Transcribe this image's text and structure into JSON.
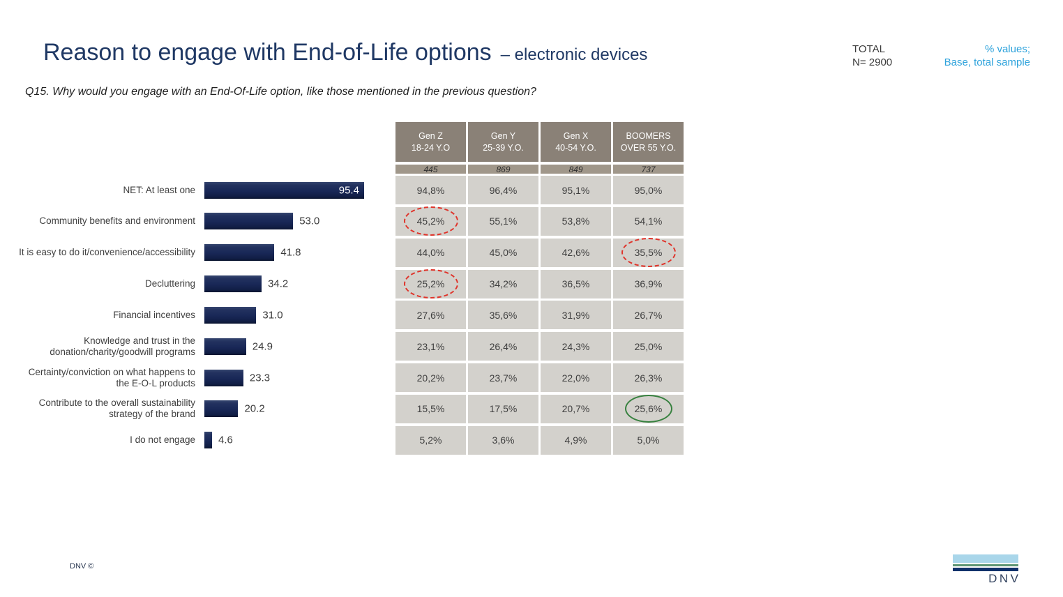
{
  "slide": {
    "title": "Reason to engage with End-of-Life options",
    "subtitle": "– electronic devices",
    "question": "Q15. Why would you engage with an End-Of-Life option, like those mentioned in the previous question?",
    "total_label": "TOTAL",
    "total_n": "N= 2900",
    "note_line1": "% values;",
    "note_line2": "Base, total sample",
    "footer_left": "DNV ©",
    "logo_text": "DNV"
  },
  "colors": {
    "title_navy": "#1F3864",
    "bar_navy": "#182756",
    "note_blue": "#2FA3DC",
    "table_header_taupe": "#8A8177",
    "table_base_taupe": "#A0978A",
    "table_cell_gray": "#D3D1CC",
    "highlight_red": "#DF342B",
    "highlight_green": "#37813F"
  },
  "chart_data": {
    "type": "bar",
    "orientation": "horizontal",
    "title": "Reason to engage with End-of-Life options – electronic devices",
    "xlabel": "",
    "ylabel": "",
    "xlim": [
      0,
      100
    ],
    "value_format": "percent, one decimal",
    "grid": false,
    "legend": false,
    "categories": [
      "NET: At least one",
      "Community benefits and environment",
      "It is easy to do it/convenience/accessibility",
      "Decluttering",
      "Financial incentives",
      "Knowledge and trust in the donation/charity/goodwill programs",
      "Certainty/conviction on what happens to the E-O-L products",
      "Contribute to the overall sustainability strategy of the brand",
      "I do not engage"
    ],
    "category_lines": [
      [
        "NET: At least one"
      ],
      [
        "Community benefits and environment"
      ],
      [
        "It is easy to do it/convenience/accessibility"
      ],
      [
        "Decluttering"
      ],
      [
        "Financial incentives"
      ],
      [
        "Knowledge and trust in the",
        "donation/charity/goodwill programs"
      ],
      [
        "Certainty/conviction on what happens to",
        "the E-O-L products"
      ],
      [
        "Contribute to the overall sustainability",
        "strategy of the brand"
      ],
      [
        "I do not engage"
      ]
    ],
    "values": [
      95.4,
      53.0,
      41.8,
      34.2,
      31.0,
      24.9,
      23.3,
      20.2,
      4.6
    ],
    "value_labels": [
      "95.4",
      "53.0",
      "41.8",
      "34.2",
      "31.0",
      "24.9",
      "23.3",
      "20.2",
      "4.6"
    ]
  },
  "table": {
    "columns": [
      {
        "label_line1": "Gen Z",
        "label_line2": "18-24 Y.O",
        "base": "445"
      },
      {
        "label_line1": "Gen Y",
        "label_line2": "25-39 Y.O.",
        "base": "869"
      },
      {
        "label_line1": "Gen X",
        "label_line2": "40-54 Y.O.",
        "base": "849"
      },
      {
        "label_line1": "BOOMERS",
        "label_line2": "OVER 55 Y.O.",
        "base": "737"
      }
    ],
    "rows": [
      [
        "94,8%",
        "96,4%",
        "95,1%",
        "95,0%"
      ],
      [
        "45,2%",
        "55,1%",
        "53,8%",
        "54,1%"
      ],
      [
        "44,0%",
        "45,0%",
        "42,6%",
        "35,5%"
      ],
      [
        "25,2%",
        "34,2%",
        "36,5%",
        "36,9%"
      ],
      [
        "27,6%",
        "35,6%",
        "31,9%",
        "26,7%"
      ],
      [
        "23,1%",
        "26,4%",
        "24,3%",
        "25,0%"
      ],
      [
        "20,2%",
        "23,7%",
        "22,0%",
        "26,3%"
      ],
      [
        "15,5%",
        "17,5%",
        "20,7%",
        "25,6%"
      ],
      [
        "5,2%",
        "3,6%",
        "4,9%",
        "5,0%"
      ]
    ],
    "highlights": [
      {
        "row": 1,
        "col": 0,
        "value": "45,2%",
        "style": "red-dashed"
      },
      {
        "row": 2,
        "col": 3,
        "value": "35,5%",
        "style": "red-dashed"
      },
      {
        "row": 3,
        "col": 0,
        "value": "25,2%",
        "style": "red-dashed"
      },
      {
        "row": 7,
        "col": 3,
        "value": "25,6%",
        "style": "green-solid"
      }
    ]
  }
}
